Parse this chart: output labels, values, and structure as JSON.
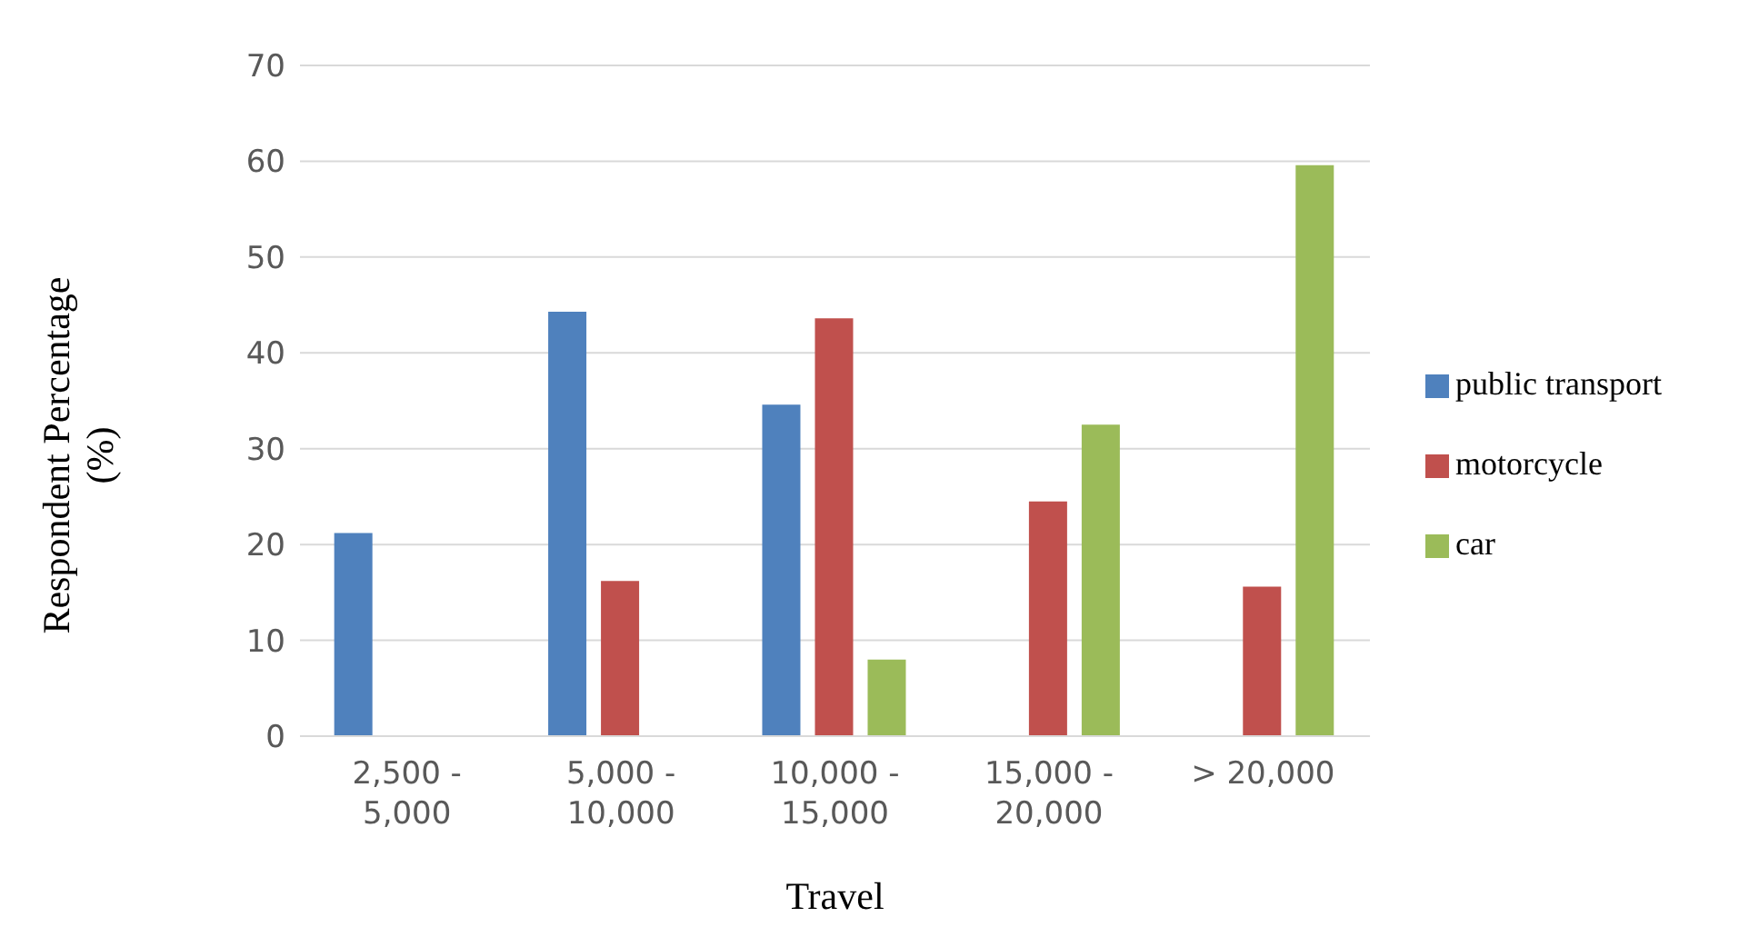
{
  "chart_data": {
    "type": "bar",
    "xlabel": "Travel",
    "ylabel": "Respondent Percentage (%)",
    "categories": [
      "2,500 - 5,000",
      "5,000 - 10,000",
      "10,000 - 15,000",
      "15,000 - 20,000",
      "> 20,000"
    ],
    "series": [
      {
        "name": "public transport",
        "color": "#4f81bd",
        "values": [
          21.2,
          44.3,
          34.6,
          null,
          null
        ]
      },
      {
        "name": "motorcycle",
        "color": "#c0504d",
        "values": [
          null,
          16.2,
          43.6,
          24.5,
          15.6
        ]
      },
      {
        "name": "car",
        "color": "#9bbb59",
        "values": [
          null,
          null,
          8,
          32.5,
          59.6
        ]
      }
    ],
    "ylim": [
      0,
      70
    ],
    "yticks": [
      0,
      10,
      20,
      30,
      40,
      50,
      60,
      70
    ],
    "grid": "y",
    "legend": "right",
    "marker": "square"
  }
}
